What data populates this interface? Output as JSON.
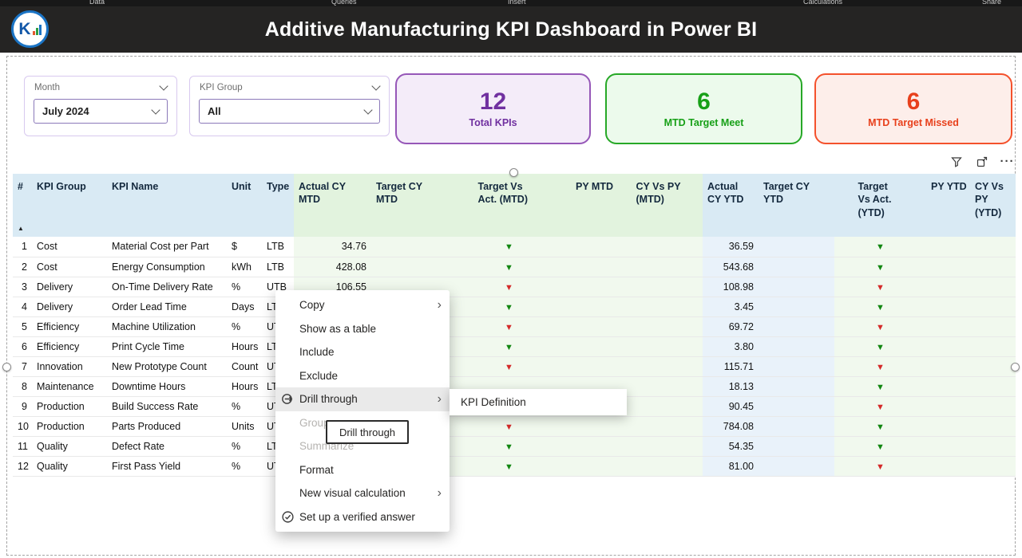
{
  "ribbon": {
    "groups": [
      "Data",
      "Queries",
      "Insert",
      "Calculations",
      "Share"
    ]
  },
  "header": {
    "title": "Additive Manufacturing KPI Dashboard in Power BI",
    "logo_letter": "K"
  },
  "slicers": {
    "month": {
      "label": "Month",
      "value": "July 2024"
    },
    "kpi_group": {
      "label": "KPI Group",
      "value": "All"
    }
  },
  "cards": [
    {
      "value": "12",
      "label": "Total KPIs",
      "color": "#7030A0",
      "bg": "#F4ECF9",
      "border": "#9657B8"
    },
    {
      "value": "6",
      "label": "MTD Target Meet",
      "color": "#17A017",
      "bg": "#ECFAEC",
      "border": "#27A827"
    },
    {
      "value": "6",
      "label": "MTD Target Missed",
      "color": "#E8401C",
      "bg": "#FDEEEA",
      "border": "#F4512C"
    }
  ],
  "visual_header": {
    "icons": [
      "filter-icon",
      "focus-mode-icon",
      "more-options-icon"
    ]
  },
  "table": {
    "columns": [
      "#",
      "KPI Group",
      "KPI Name",
      "Unit",
      "Type",
      "Actual CY MTD",
      "Target CY MTD",
      "Target Vs Act. (MTD)",
      "PY MTD",
      "CY Vs PY (MTD)",
      "Actual CY YTD",
      "Target CY YTD",
      "Target Vs Act. (YTD)",
      "PY YTD",
      "CY Vs PY (YTD)"
    ],
    "sort_indicator": "▲",
    "rows": [
      [
        "1",
        "Cost",
        "Material Cost per Part",
        "$",
        "LTB",
        "34.76",
        "",
        "g",
        "",
        "",
        "36.59",
        "",
        "g",
        "",
        ""
      ],
      [
        "2",
        "Cost",
        "Energy Consumption",
        "kWh",
        "LTB",
        "428.08",
        "",
        "g",
        "",
        "",
        "543.68",
        "",
        "g",
        "",
        ""
      ],
      [
        "3",
        "Delivery",
        "On-Time Delivery Rate",
        "%",
        "UTB",
        "106.55",
        "",
        "r",
        "",
        "",
        "108.98",
        "",
        "r",
        "",
        ""
      ],
      [
        "4",
        "Delivery",
        "Order Lead Time",
        "Days",
        "LTB",
        "",
        "",
        "g",
        "",
        "",
        "3.45",
        "",
        "g",
        "",
        ""
      ],
      [
        "5",
        "Efficiency",
        "Machine Utilization",
        "%",
        "UTB",
        "",
        "",
        "r",
        "",
        "",
        "69.72",
        "",
        "r",
        "",
        ""
      ],
      [
        "6",
        "Efficiency",
        "Print Cycle Time",
        "Hours",
        "LTB",
        "",
        "",
        "g",
        "",
        "",
        "3.80",
        "",
        "g",
        "",
        ""
      ],
      [
        "7",
        "Innovation",
        "New Prototype Count",
        "Count",
        "UTB",
        "",
        "",
        "r",
        "",
        "",
        "115.71",
        "",
        "r",
        "",
        ""
      ],
      [
        "8",
        "Maintenance",
        "Downtime Hours",
        "Hours",
        "LTB",
        "",
        "",
        "",
        "",
        "",
        "18.13",
        "",
        "g",
        "",
        ""
      ],
      [
        "9",
        "Production",
        "Build Success Rate",
        "%",
        "UTB",
        "",
        "",
        "",
        "",
        "",
        "90.45",
        "",
        "r",
        "",
        ""
      ],
      [
        "10",
        "Production",
        "Parts Produced",
        "Units",
        "UTB",
        "",
        "",
        "r",
        "",
        "",
        "784.08",
        "",
        "g",
        "",
        ""
      ],
      [
        "11",
        "Quality",
        "Defect Rate",
        "%",
        "LTB",
        "",
        "",
        "g",
        "",
        "",
        "54.35",
        "",
        "g",
        "",
        ""
      ],
      [
        "12",
        "Quality",
        "First Pass Yield",
        "%",
        "UTB",
        "",
        "",
        "g",
        "",
        "",
        "81.00",
        "",
        "r",
        "",
        ""
      ]
    ]
  },
  "context_menu": {
    "items": [
      {
        "label": "Copy",
        "submenu": true
      },
      {
        "label": "Show as a table"
      },
      {
        "label": "Include"
      },
      {
        "label": "Exclude"
      },
      {
        "label": "Drill through",
        "submenu": true,
        "icon": "drill-through-icon",
        "highlighted": true
      },
      {
        "label": "Group",
        "disabled": true
      },
      {
        "label": "Summarize",
        "disabled": true
      },
      {
        "label": "Format"
      },
      {
        "label": "New visual calculation",
        "submenu": true
      },
      {
        "label": "Set up a verified answer",
        "icon": "verified-answer-icon"
      }
    ]
  },
  "drill_submenu": {
    "label": "KPI Definition"
  },
  "tooltip": {
    "text": "Drill through"
  },
  "colors": {
    "header_bar": "#252423",
    "arrow_green": "#128712",
    "arrow_red": "#D42A2A",
    "mtd_band": "#F1F9EE",
    "ytd_band": "#E9F2FA"
  }
}
